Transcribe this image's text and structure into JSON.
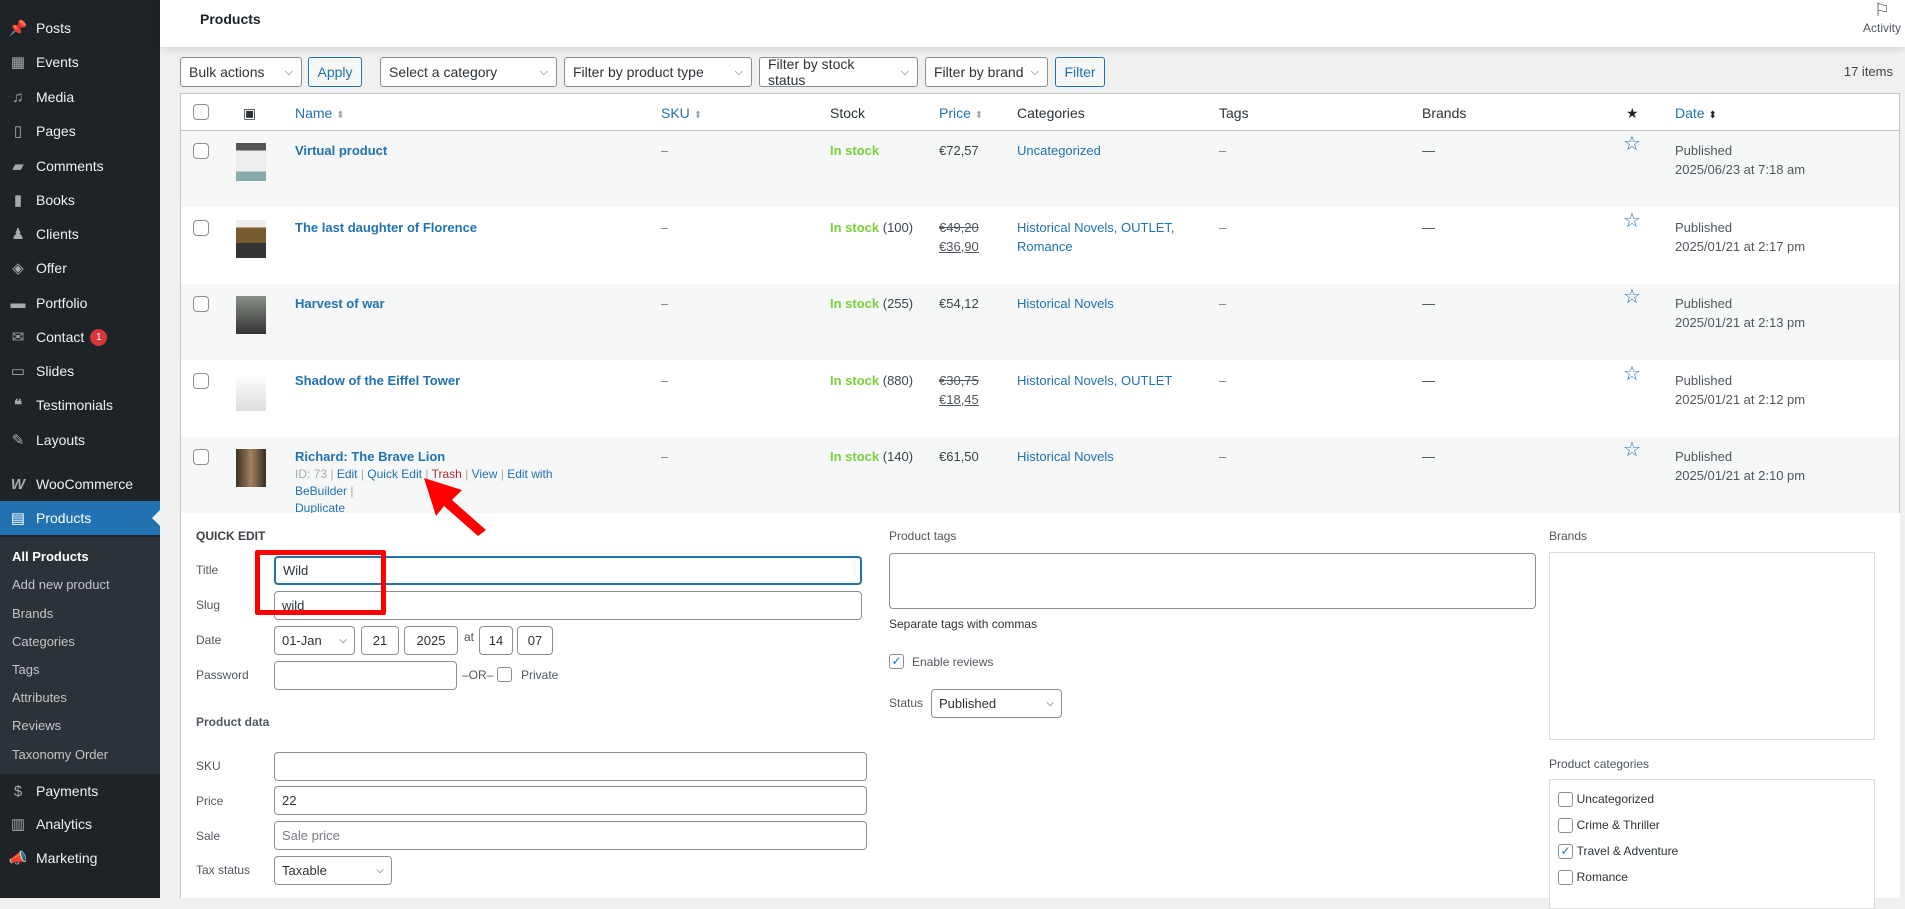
{
  "sidebar": {
    "items": [
      {
        "label": "Posts",
        "icon": "pin-icon"
      },
      {
        "label": "Events",
        "icon": "calendar-icon"
      },
      {
        "label": "Media",
        "icon": "media-icon"
      },
      {
        "label": "Pages",
        "icon": "pages-icon"
      },
      {
        "label": "Comments",
        "icon": "comment-icon"
      },
      {
        "label": "Books",
        "icon": "book-icon"
      },
      {
        "label": "Clients",
        "icon": "person-icon"
      },
      {
        "label": "Offer",
        "icon": "tag-icon"
      },
      {
        "label": "Portfolio",
        "icon": "folder-icon"
      },
      {
        "label": "Contact",
        "icon": "mail-icon",
        "badge": "1"
      },
      {
        "label": "Slides",
        "icon": "slides-icon"
      },
      {
        "label": "Testimonials",
        "icon": "quote-icon"
      },
      {
        "label": "Layouts",
        "icon": "pencil-icon"
      },
      {
        "label": "WooCommerce",
        "icon": "woo-icon"
      },
      {
        "label": "Products",
        "icon": "archive-icon"
      }
    ],
    "submenu": [
      "All Products",
      "Add new product",
      "Brands",
      "Categories",
      "Tags",
      "Attributes",
      "Reviews",
      "Taxonomy Order"
    ],
    "bottom": [
      {
        "label": "Payments",
        "icon": "dollar-icon"
      },
      {
        "label": "Analytics",
        "icon": "chart-icon"
      },
      {
        "label": "Marketing",
        "icon": "megaphone-icon"
      }
    ]
  },
  "header": {
    "title": "Products",
    "activity": "Activity"
  },
  "toolbar": {
    "bulk": "Bulk actions",
    "apply": "Apply",
    "category": "Select a category",
    "type": "Filter by product type",
    "stock": "Filter by stock status",
    "brand": "Filter by brand",
    "filter": "Filter",
    "count": "17 items"
  },
  "columns": {
    "name": "Name",
    "sku": "SKU",
    "stock": "Stock",
    "price": "Price",
    "categories": "Categories",
    "tags": "Tags",
    "brands": "Brands",
    "date": "Date"
  },
  "rows": [
    {
      "name": "Virtual product",
      "sku": "–",
      "stock": "In stock",
      "qty": "",
      "price": "€72,57",
      "price_old": "",
      "categories": "Uncategorized",
      "tags": "–",
      "brands": "—",
      "status": "Published",
      "date": "2025/06/23 at 7:18 am"
    },
    {
      "name": "The last daughter of Florence",
      "sku": "–",
      "stock": "In stock",
      "qty": "(100)",
      "price": "€36,90",
      "price_old": "€49,20",
      "categories": "Historical Novels, OUTLET, Romance",
      "tags": "–",
      "brands": "—",
      "status": "Published",
      "date": "2025/01/21 at 2:17 pm"
    },
    {
      "name": "Harvest of war",
      "sku": "–",
      "stock": "In stock",
      "qty": "(255)",
      "price": "€54,12",
      "price_old": "",
      "categories": "Historical Novels",
      "tags": "–",
      "brands": "—",
      "status": "Published",
      "date": "2025/01/21 at 2:13 pm"
    },
    {
      "name": "Shadow of the Eiffel Tower",
      "sku": "–",
      "stock": "In stock",
      "qty": "(880)",
      "price": "€18,45",
      "price_old": "€30,75",
      "categories": "Historical Novels, OUTLET",
      "tags": "–",
      "brands": "—",
      "status": "Published",
      "date": "2025/01/21 at 2:12 pm"
    },
    {
      "name": "Richard: The Brave Lion",
      "sku": "–",
      "stock": "In stock",
      "qty": "(140)",
      "price": "€61,50",
      "price_old": "",
      "categories": "Historical Novels",
      "tags": "–",
      "brands": "—",
      "status": "Published",
      "date": "2025/01/21 at 2:10 pm"
    }
  ],
  "row_actions": {
    "id": "ID: 73",
    "edit": "Edit",
    "quick_edit": "Quick Edit",
    "trash": "Trash",
    "view": "View",
    "bebuilder": "Edit with BeBuilder",
    "duplicate": "Duplicate"
  },
  "quick_edit": {
    "heading": "QUICK EDIT",
    "title_label": "Title",
    "title": "Wild",
    "slug_label": "Slug",
    "slug": "wild",
    "date_label": "Date",
    "month": "01-Jan",
    "day": "21",
    "year": "2025",
    "at": "at",
    "hour": "14",
    "minute": "07",
    "password_label": "Password",
    "or": "–OR–",
    "private": "Private",
    "product_data": "Product data",
    "sku_label": "SKU",
    "sku": "",
    "price_label": "Price",
    "price": "22",
    "sale_label": "Sale",
    "sale_placeholder": "Sale price",
    "tax_label": "Tax status",
    "tax": "Taxable",
    "tags_label": "Product tags",
    "tags_hint": "Separate tags with commas",
    "enable_reviews": "Enable reviews",
    "enable_reviews_checked": true,
    "status_label": "Status",
    "status": "Published",
    "brands_label": "Brands",
    "categories_label": "Product categories",
    "categories": [
      {
        "label": "Uncategorized",
        "checked": false
      },
      {
        "label": "Crime & Thriller",
        "checked": false
      },
      {
        "label": "Travel & Adventure",
        "checked": true
      },
      {
        "label": "Romance",
        "checked": false
      }
    ]
  },
  "colors": {
    "accent": "#2271b1",
    "sidebar": "#1d2327",
    "instock": "#7ad03a",
    "annotation": "#ff0000"
  }
}
